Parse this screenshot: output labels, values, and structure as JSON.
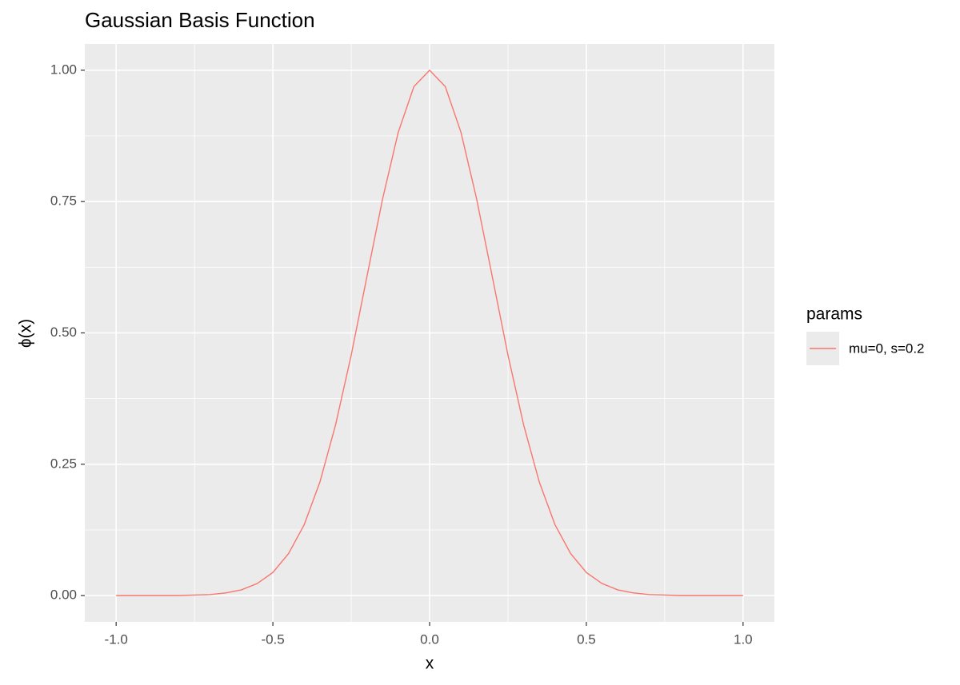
{
  "chart_data": {
    "type": "line",
    "title": "Gaussian Basis Function",
    "x_label": "x",
    "y_label": "ϕ(x)",
    "legend_title": "params",
    "x": [
      -1,
      -0.95,
      -0.9,
      -0.85,
      -0.8,
      -0.75,
      -0.7,
      -0.65,
      -0.6,
      -0.55,
      -0.5,
      -0.45,
      -0.4,
      -0.35,
      -0.3,
      -0.25,
      -0.2,
      -0.15,
      -0.1,
      -0.05,
      0,
      0.05,
      0.1,
      0.15,
      0.2,
      0.25,
      0.3,
      0.35,
      0.4,
      0.45,
      0.5,
      0.55,
      0.6,
      0.65,
      0.7,
      0.75,
      0.8,
      0.85,
      0.9,
      0.95,
      1
    ],
    "series": [
      {
        "name": "mu=0, s=0.2",
        "color": "#f8766d",
        "values": [
          0,
          0,
          0,
          0,
          0,
          0.001,
          0.002,
          0.005,
          0.011,
          0.023,
          0.044,
          0.08,
          0.135,
          0.216,
          0.325,
          0.458,
          0.607,
          0.755,
          0.882,
          0.969,
          1,
          0.969,
          0.882,
          0.755,
          0.607,
          0.458,
          0.325,
          0.216,
          0.135,
          0.08,
          0.044,
          0.023,
          0.011,
          0.005,
          0.002,
          0.001,
          0,
          0,
          0,
          0,
          0
        ]
      }
    ],
    "xlim": [
      -1.1,
      1.1
    ],
    "xticks": [
      {
        "value": -1,
        "label": "-1.0"
      },
      -0.5,
      {
        "value": 0,
        "label": "0.0"
      },
      0.5,
      {
        "value": 1,
        "label": "1.0"
      }
    ],
    "x_minor_ticks": [
      -0.75,
      -0.25,
      0.25,
      0.75
    ],
    "ylim": [
      -0.05,
      1.05
    ],
    "yticks": [
      {
        "value": 0,
        "label": "0.00"
      },
      {
        "value": 0.25,
        "label": "0.25"
      },
      {
        "value": 0.5,
        "label": "0.50"
      },
      {
        "value": 0.75,
        "label": "0.75"
      },
      {
        "value": 1,
        "label": "1.00"
      }
    ],
    "y_minor_ticks": [
      0.125,
      0.375,
      0.625,
      0.875
    ],
    "grid": true,
    "panel_color": "#ebebeb",
    "grid_color": "#ffffff",
    "legend": "right"
  }
}
